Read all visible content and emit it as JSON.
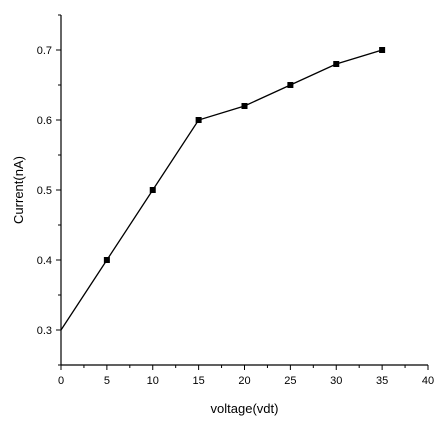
{
  "chart_data": {
    "type": "line",
    "title": "",
    "xlabel": "voltage(vdt)",
    "ylabel": "Current(nA)",
    "xlim": [
      0,
      40
    ],
    "ylim": [
      0.25,
      0.75
    ],
    "xticks": [
      0,
      5,
      10,
      15,
      20,
      25,
      30,
      35,
      40
    ],
    "xtick_labels": [
      "0",
      "5",
      "10",
      "15",
      "20",
      "25",
      "30",
      "35",
      "40"
    ],
    "yticks": [
      0.3,
      0.4,
      0.5,
      0.6,
      0.7
    ],
    "ytick_labels": [
      "0.3",
      "0.4",
      "0.5",
      "0.6",
      "0.7"
    ],
    "grid": false,
    "legend": "none",
    "series": [
      {
        "x": [
          0,
          5,
          10,
          15,
          20,
          25,
          30,
          35
        ],
        "y": [
          0.3,
          0.4,
          0.5,
          0.6,
          0.62,
          0.65,
          0.68,
          0.7
        ],
        "marker": "square",
        "color": "#000000"
      }
    ]
  }
}
